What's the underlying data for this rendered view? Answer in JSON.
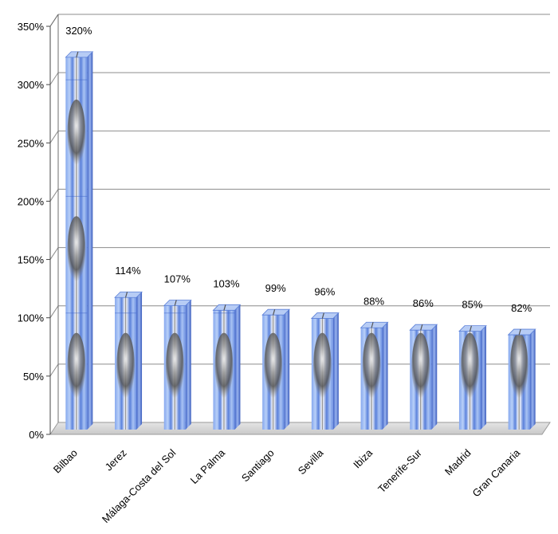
{
  "chart_data": {
    "type": "bar",
    "title": "",
    "xlabel": "",
    "ylabel": "",
    "categories": [
      "Bilbao",
      "Jerez",
      "Málaga-Costa del Sol",
      "La Palma",
      "Santiago",
      "Sevilla",
      "Ibiza",
      "Tenerife-Sur",
      "Madrid",
      "Gran Canaria"
    ],
    "values": [
      320,
      114,
      107,
      103,
      99,
      96,
      88,
      86,
      85,
      82
    ],
    "data_labels": [
      "320%",
      "114%",
      "107%",
      "103%",
      "99%",
      "96%",
      "88%",
      "86%",
      "85%",
      "82%"
    ],
    "ylim": [
      0,
      350
    ],
    "y_ticks": [
      0,
      50,
      100,
      150,
      200,
      250,
      300,
      350
    ],
    "y_tick_labels": [
      "0%",
      "50%",
      "100%",
      "150%",
      "200%",
      "250%",
      "300%",
      "350%"
    ],
    "grid": true,
    "legend": "none",
    "colors": {
      "bar_light": "#a8c4f2",
      "bar_mid": "#6f95e6",
      "bar_dark": "#3d63c9",
      "gridline": "#8c8c8c"
    }
  }
}
